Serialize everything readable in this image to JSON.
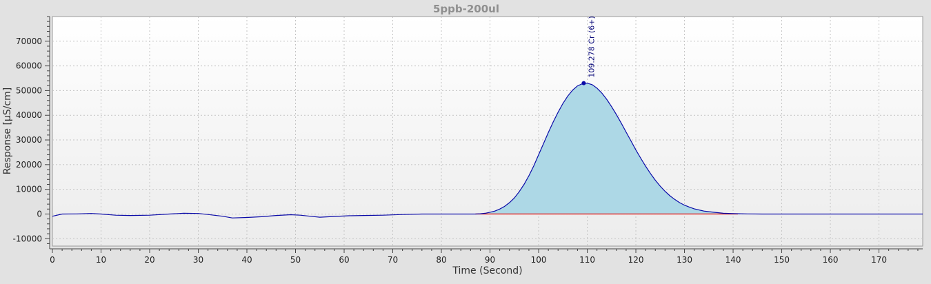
{
  "chart_data": {
    "type": "area",
    "title": "5ppb-200ul",
    "xlabel": "Time (Second)",
    "ylabel": "Response [µS/cm]",
    "xlim": [
      0,
      179
    ],
    "ylim": [
      -13000,
      80000
    ],
    "x_ticks": [
      0,
      10,
      20,
      30,
      40,
      50,
      60,
      70,
      80,
      90,
      100,
      110,
      120,
      130,
      140,
      150,
      160,
      170
    ],
    "y_ticks": [
      -10000,
      0,
      10000,
      20000,
      30000,
      40000,
      50000,
      60000,
      70000
    ],
    "grid": true,
    "colors": {
      "line": "#0a0aa8",
      "fill": "#add8e6",
      "baseline": "#e02020",
      "peak_marker": "#0a0aa8",
      "plot_bg_top": "#ffffff",
      "plot_bg_bottom": "#ececec",
      "frame_bg": "#e2e2e2"
    },
    "series": [
      {
        "x": [
          0,
          2,
          5,
          8,
          10,
          13,
          16,
          20,
          24,
          27,
          30,
          32,
          35,
          37,
          40,
          43,
          46,
          49,
          51,
          53,
          55,
          58,
          61,
          64,
          68,
          72,
          76,
          80,
          84,
          87,
          88,
          89,
          90,
          91,
          92,
          93,
          94,
          95,
          96,
          97,
          98,
          99,
          100,
          101,
          102,
          103,
          104,
          105,
          106,
          107,
          108,
          109,
          110,
          111,
          112,
          113,
          114,
          115,
          116,
          117,
          118,
          119,
          120,
          121,
          122,
          123,
          124,
          125,
          126,
          127,
          128,
          129,
          130,
          131,
          132,
          134,
          136,
          138,
          140,
          143,
          146,
          150,
          156,
          160,
          165,
          170,
          175,
          179
        ],
        "y": [
          -900,
          0,
          50,
          200,
          0,
          -500,
          -600,
          -500,
          0,
          300,
          200,
          -200,
          -900,
          -1600,
          -1400,
          -1100,
          -600,
          -300,
          -500,
          -900,
          -1300,
          -1000,
          -700,
          -600,
          -500,
          -200,
          0,
          0,
          0,
          0,
          100,
          300,
          700,
          1200,
          2000,
          3100,
          4600,
          6500,
          9000,
          12000,
          15500,
          19500,
          24000,
          28500,
          33000,
          37300,
          41200,
          44800,
          47800,
          50200,
          51900,
          52800,
          53000,
          52400,
          51000,
          49000,
          46500,
          43500,
          40300,
          36800,
          33200,
          29600,
          26000,
          22600,
          19400,
          16400,
          13700,
          11300,
          9200,
          7400,
          5900,
          4600,
          3600,
          2800,
          2100,
          1200,
          700,
          300,
          150,
          50,
          0,
          0,
          0,
          0,
          0,
          0,
          0,
          0
        ]
      }
    ],
    "integration": {
      "x_start": 87,
      "x_end": 141
    },
    "annotations": [
      {
        "text": "109.278 Cr  (6+)",
        "x": 109.278,
        "y": 53000
      }
    ]
  }
}
